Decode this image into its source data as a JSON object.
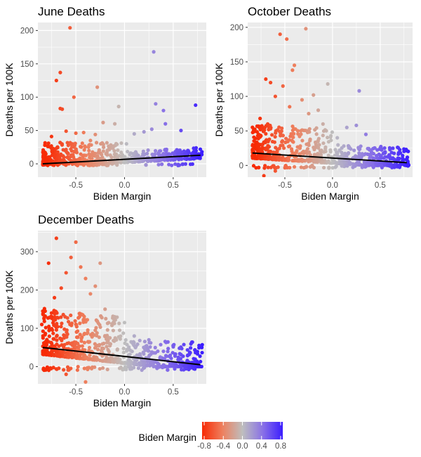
{
  "chart_data": [
    {
      "type": "scatter",
      "title": "June Deaths",
      "xlabel": "Biden Margin",
      "ylabel": "Deaths per 100K",
      "xlim": [
        -0.89,
        0.84
      ],
      "ylim": [
        -20,
        212
      ],
      "xticks": [
        -0.5,
        0.0,
        0.5
      ],
      "xtick_labels": [
        "-0.5",
        "0.0",
        "0.5"
      ],
      "yticks": [
        0,
        50,
        100,
        150,
        200
      ],
      "ytick_labels": [
        "0",
        "50",
        "100",
        "150",
        "200"
      ],
      "grid": true,
      "series": [
        {
          "points": [
            [
              -0.56,
              204
            ],
            [
              -0.52,
              100
            ],
            [
              -0.28,
              115
            ],
            [
              0.3,
              168
            ],
            [
              -0.66,
              137
            ],
            [
              -0.7,
              125
            ],
            [
              -0.66,
              83
            ],
            [
              -0.64,
              82
            ],
            [
              -0.06,
              86
            ],
            [
              0.32,
              90
            ],
            [
              0.73,
              88
            ],
            [
              -0.22,
              62
            ],
            [
              0.42,
              60
            ],
            [
              0.28,
              52
            ],
            [
              0.4,
              80
            ],
            [
              -0.5,
              46
            ],
            [
              -0.6,
              49
            ],
            [
              -0.42,
              47
            ],
            [
              -0.3,
              44
            ],
            [
              0.1,
              45
            ],
            [
              -0.75,
              41
            ],
            [
              0.2,
              48
            ],
            [
              -0.1,
              60
            ],
            [
              0.58,
              50
            ],
            [
              0.02,
              30
            ],
            [
              -0.35,
              35
            ],
            [
              0.65,
              20
            ]
          ],
          "bulk_count": 650,
          "bulk_y_min": 0,
          "bulk_y_max": 32
        }
      ],
      "trend": {
        "x": [
          -0.84,
          0.78
        ],
        "y": [
          0,
          13
        ]
      }
    },
    {
      "type": "scatter",
      "title": "October Deaths",
      "xlabel": "Biden Margin",
      "ylabel": "Deaths per 100K",
      "xlim": [
        -0.89,
        0.84
      ],
      "ylim": [
        -17,
        207
      ],
      "xticks": [
        -0.5,
        0.0,
        0.5
      ],
      "xtick_labels": [
        "-0.5",
        "0.0",
        "0.5"
      ],
      "yticks": [
        0,
        50,
        100,
        150,
        200
      ],
      "ytick_labels": [
        "0",
        "50",
        "100",
        "150",
        "200"
      ],
      "grid": true,
      "series": [
        {
          "points": [
            [
              -0.55,
              190
            ],
            [
              -0.48,
              183
            ],
            [
              -0.28,
              198
            ],
            [
              -0.4,
              145
            ],
            [
              -0.42,
              138
            ],
            [
              -0.7,
              125
            ],
            [
              -0.65,
              120
            ],
            [
              -0.52,
              115
            ],
            [
              -0.05,
              118
            ],
            [
              0.28,
              108
            ],
            [
              -0.2,
              102
            ],
            [
              -0.6,
              100
            ],
            [
              -0.32,
              95
            ],
            [
              -0.15,
              80
            ],
            [
              -0.25,
              75
            ],
            [
              0.15,
              55
            ],
            [
              0.25,
              58
            ],
            [
              0.35,
              45
            ],
            [
              -0.76,
              68
            ],
            [
              -0.68,
              60
            ],
            [
              -0.45,
              85
            ],
            [
              -0.1,
              60
            ],
            [
              0.05,
              40
            ],
            [
              0.5,
              25
            ],
            [
              0.7,
              10
            ],
            [
              -0.72,
              -15
            ],
            [
              -0.6,
              -8
            ]
          ],
          "bulk_count": 700,
          "bulk_y_min": 0,
          "bulk_y_max": 50
        }
      ],
      "trend": {
        "x": [
          -0.84,
          0.78
        ],
        "y": [
          18,
          4
        ]
      }
    },
    {
      "type": "scatter",
      "title": "December Deaths",
      "xlabel": "Biden Margin",
      "ylabel": "Deaths per 100K",
      "xlim": [
        -0.89,
        0.84
      ],
      "ylim": [
        -45,
        355
      ],
      "xticks": [
        -0.5,
        0.0,
        0.5
      ],
      "xtick_labels": [
        "-0.5",
        "0.0",
        "0.5"
      ],
      "yticks": [
        0,
        100,
        200,
        300
      ],
      "ytick_labels": [
        "0",
        "100",
        "200",
        "300"
      ],
      "grid": true,
      "series": [
        {
          "points": [
            [
              -0.7,
              335
            ],
            [
              -0.5,
              325
            ],
            [
              -0.78,
              270
            ],
            [
              -0.55,
              285
            ],
            [
              -0.45,
              260
            ],
            [
              -0.25,
              270
            ],
            [
              -0.6,
              245
            ],
            [
              -0.4,
              230
            ],
            [
              -0.3,
              210
            ],
            [
              -0.65,
              205
            ],
            [
              -0.2,
              150
            ],
            [
              -0.1,
              130
            ],
            [
              0.0,
              115
            ],
            [
              -0.05,
              95
            ],
            [
              0.1,
              80
            ],
            [
              0.25,
              70
            ],
            [
              0.4,
              40
            ],
            [
              0.65,
              30
            ],
            [
              -0.85,
              110
            ],
            [
              -0.75,
              140
            ],
            [
              -0.72,
              180
            ],
            [
              -0.35,
              190
            ],
            [
              -0.15,
              75
            ],
            [
              -0.4,
              -40
            ],
            [
              -0.6,
              -20
            ],
            [
              0.55,
              18
            ]
          ],
          "bulk_count": 800,
          "bulk_y_min": 0,
          "bulk_y_max": 120
        }
      ],
      "trend": {
        "x": [
          -0.84,
          0.78
        ],
        "y": [
          50,
          5
        ]
      }
    }
  ],
  "legend": {
    "title": "Biden Margin",
    "placement": "bottom",
    "colors": [
      "#f72a05",
      "#ee7f5d",
      "#bebebe",
      "#8a72e6",
      "#3a1cff"
    ],
    "ticks": [
      -0.8,
      -0.4,
      0.0,
      0.4,
      0.8
    ],
    "labels": [
      "-0.8",
      "-0.4",
      "0.0",
      "0.4",
      "0.8"
    ]
  },
  "colors": {
    "panel_bg": "#ebebeb",
    "grid": "#ffffff",
    "trend": "#000000"
  }
}
